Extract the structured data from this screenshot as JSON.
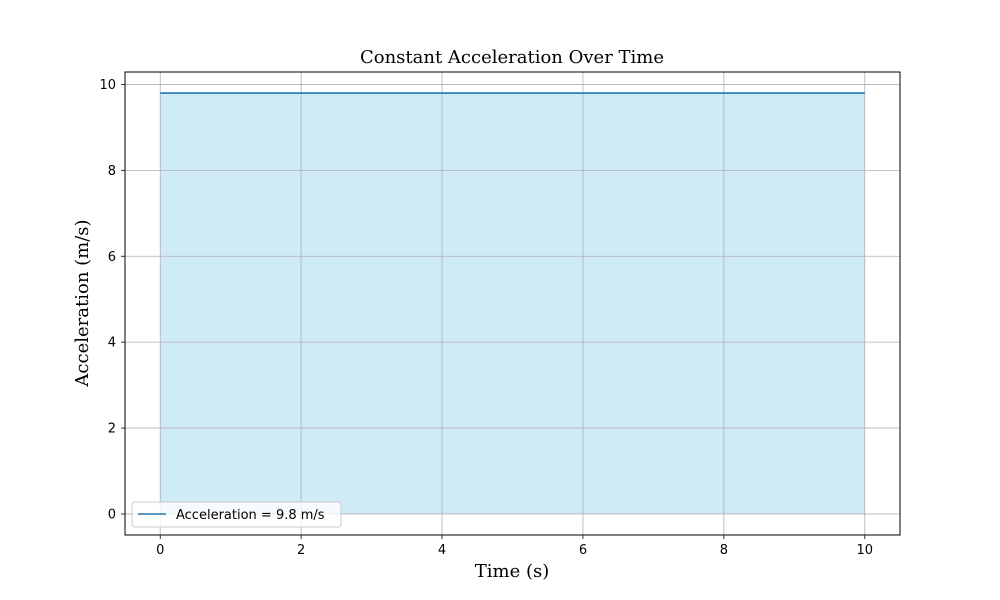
{
  "chart_data": {
    "type": "area",
    "title": "Constant Acceleration Over Time",
    "xlabel": "Time (s)",
    "ylabel": "Acceleration (m/s)",
    "xlim": [
      -0.5,
      10.5
    ],
    "ylim": [
      -0.49,
      10.29
    ],
    "xticks": [
      0,
      2,
      4,
      6,
      8,
      10
    ],
    "yticks": [
      0,
      2,
      4,
      6,
      8,
      10
    ],
    "grid": true,
    "legend_position": "lower-left",
    "series": [
      {
        "name": "Acceleration = 9.8 m/s",
        "x": [
          0,
          10
        ],
        "y": [
          9.8,
          9.8
        ],
        "line_color": "#1f77b4",
        "fill_color": "#87ceeb",
        "fill_alpha": 0.4
      }
    ]
  }
}
